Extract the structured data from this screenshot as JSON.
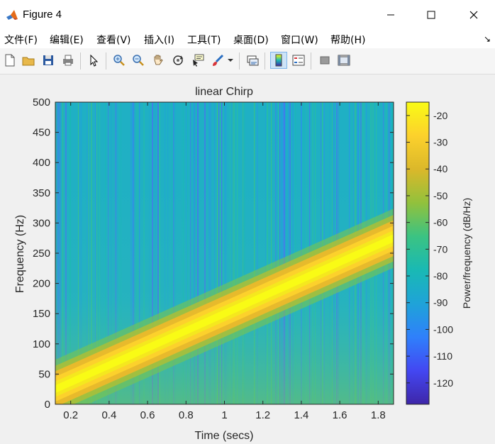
{
  "window": {
    "title": "Figure 4",
    "minimize_icon": "minimize-icon",
    "maximize_icon": "maximize-icon",
    "close_icon": "close-icon"
  },
  "menu": {
    "items": [
      "文件(F)",
      "编辑(E)",
      "查看(V)",
      "插入(I)",
      "工具(T)",
      "桌面(D)",
      "窗口(W)",
      "帮助(H)"
    ],
    "dock_arrow": "↘"
  },
  "toolbar": {
    "buttons": [
      "new-figure-icon",
      "open-file-icon",
      "save-icon",
      "print-icon",
      "edit-plot-arrow-icon",
      "zoom-in-icon",
      "zoom-out-icon",
      "pan-hand-icon",
      "rotate-3d-icon",
      "data-cursor-icon",
      "brush-icon",
      "brush-dropdown-icon",
      "link-plot-icon",
      "insert-colorbar-icon",
      "insert-legend-icon",
      "hide-plot-tools-icon",
      "show-plot-tools-icon"
    ]
  },
  "chart_data": {
    "type": "heatmap",
    "title": "linear Chirp",
    "xlabel": "Time (secs)",
    "ylabel": "Frequency (Hz)",
    "xlim": [
      0.12,
      1.88
    ],
    "ylim": [
      0,
      500
    ],
    "xticks": [
      0.2,
      0.4,
      0.6,
      0.8,
      1,
      1.2,
      1.4,
      1.6,
      1.8
    ],
    "xtick_labels": [
      "0.2",
      "0.4",
      "0.6",
      "0.8",
      "1",
      "1.2",
      "1.4",
      "1.6",
      "1.8"
    ],
    "yticks": [
      0,
      50,
      100,
      150,
      200,
      250,
      300,
      350,
      400,
      450,
      500
    ],
    "ytick_labels": [
      "0",
      "50",
      "100",
      "150",
      "200",
      "250",
      "300",
      "350",
      "400",
      "450",
      "500"
    ],
    "ridge": {
      "start": {
        "time": 0.12,
        "frequency": 25
      },
      "end": {
        "time": 1.88,
        "frequency": 275
      }
    },
    "colorbar": {
      "label": "Power/frequency (dB/Hz)",
      "ticks": [
        -20,
        -30,
        -40,
        -50,
        -60,
        -70,
        -80,
        -90,
        -100,
        -110,
        -120
      ],
      "tick_labels": [
        "-20",
        "-30",
        "-40",
        "-50",
        "-60",
        "-70",
        "-80",
        "-90",
        "-100",
        "-110",
        "-120"
      ],
      "range": [
        -128,
        -15
      ],
      "colormap": [
        "#3e26a8",
        "#4347f2",
        "#2f80fb",
        "#1fa3d8",
        "#19b9b4",
        "#3bc382",
        "#92c13c",
        "#dbb82a",
        "#fcd12c",
        "#f9fb15"
      ]
    }
  }
}
